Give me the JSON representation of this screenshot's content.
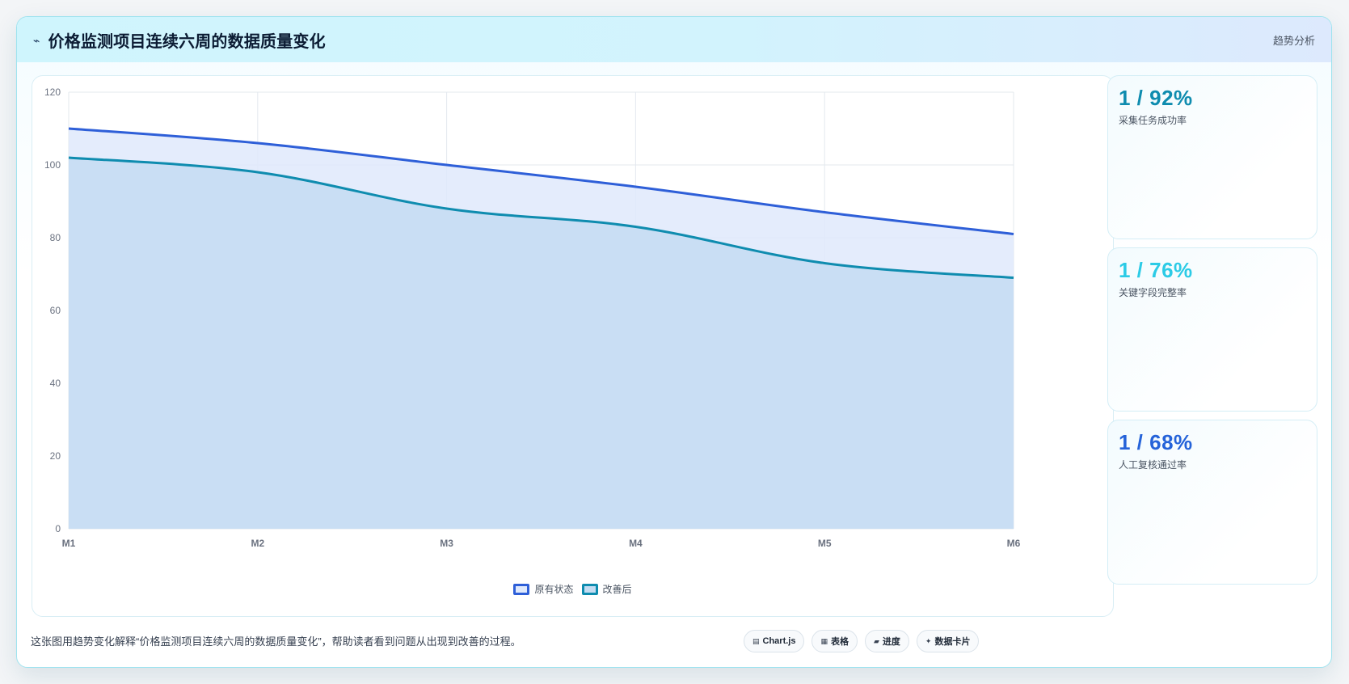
{
  "header": {
    "icon": "trend-line-icon",
    "title": "价格监测项目连续六周的数据质量变化",
    "tag": "趋势分析"
  },
  "chart_data": {
    "type": "area",
    "title": "",
    "xlabel": "",
    "ylabel": "",
    "categories": [
      "M1",
      "M2",
      "M3",
      "M4",
      "M5",
      "M6"
    ],
    "ylim": [
      0,
      120
    ],
    "yticks": [
      0,
      20,
      40,
      60,
      80,
      100,
      120
    ],
    "grid": true,
    "legend_position": "bottom",
    "series": [
      {
        "name": "原有状态",
        "values": [
          110,
          106,
          100,
          94,
          87,
          81
        ],
        "color": "#2e5fd8",
        "fill": "#dfe9fc"
      },
      {
        "name": "改善后",
        "values": [
          102,
          98,
          88,
          83,
          73,
          69
        ],
        "color": "#0f8caf",
        "fill": "#c4dcf2"
      }
    ]
  },
  "kpis": [
    {
      "value": "1 / 92%",
      "label": "采集任务成功率",
      "color": "#0f8caf"
    },
    {
      "value": "1 / 76%",
      "label": "关键字段完整率",
      "color": "#2ccbe6"
    },
    {
      "value": "1 / 68%",
      "label": "人工复核通过率",
      "color": "#2563d9"
    }
  ],
  "footer": {
    "description": "这张图用趋势变化解释“价格监测项目连续六周的数据质量变化”，帮助读者看到问题从出现到改善的过程。",
    "chips": [
      {
        "icon": "chart-icon",
        "glyph": "▤",
        "label": "Chart.js"
      },
      {
        "icon": "table-icon",
        "glyph": "▦",
        "label": "表格"
      },
      {
        "icon": "progress-icon",
        "glyph": "▰",
        "label": "进度"
      },
      {
        "icon": "data-card-icon",
        "glyph": "✦",
        "label": "数据卡片"
      }
    ]
  }
}
